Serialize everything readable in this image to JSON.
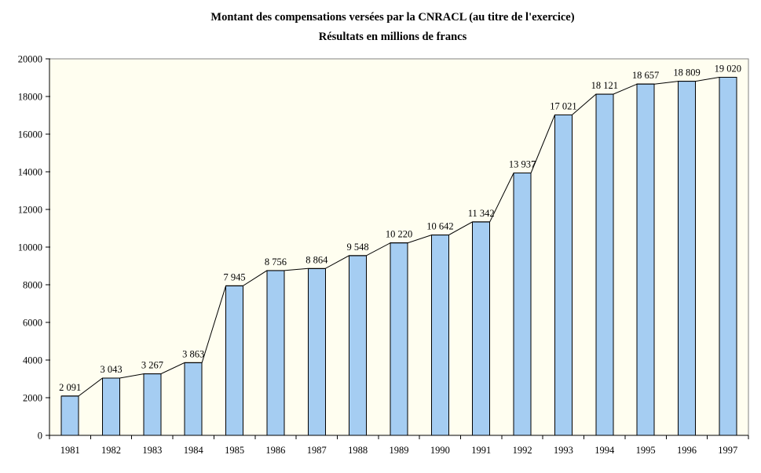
{
  "chart_data": {
    "type": "bar",
    "title": "Montant des compensations versées par la CNRACL (au titre de l'exercice)",
    "subtitle": "Résultats en millions de francs",
    "categories": [
      "1981",
      "1982",
      "1983",
      "1984",
      "1985",
      "1986",
      "1987",
      "1988",
      "1989",
      "1990",
      "1991",
      "1992",
      "1993",
      "1994",
      "1995",
      "1996",
      "1997"
    ],
    "values": [
      2091,
      3043,
      3267,
      3863,
      7945,
      8756,
      8864,
      9548,
      10220,
      10642,
      11342,
      13937,
      17021,
      18121,
      18657,
      18809,
      19020
    ],
    "value_labels": [
      "2 091",
      "3 043",
      "3 267",
      "3 863",
      "7 945",
      "8 756",
      "8 864",
      "9 548",
      "10 220",
      "10 642",
      "11 342",
      "13 937",
      "17 021",
      "18 121",
      "18 657",
      "18 809",
      "19 020"
    ],
    "xlabel": "",
    "ylabel": "",
    "ylim": [
      0,
      20000
    ],
    "ytick_step": 2000,
    "ytick_labels": [
      "0",
      "2000",
      "4000",
      "6000",
      "8000",
      "10000",
      "12000",
      "14000",
      "16000",
      "18000",
      "20000"
    ],
    "grid": false,
    "legend": "none",
    "overlay_line": true,
    "colors": {
      "bar_fill": "#A5CDF2",
      "bar_border": "#000000",
      "line": "#000000",
      "plot_bg": "#FFFEF0",
      "plot_border": "#808080",
      "axis": "#000000",
      "text": "#000000",
      "page_bg": "#FFFFFF"
    }
  }
}
